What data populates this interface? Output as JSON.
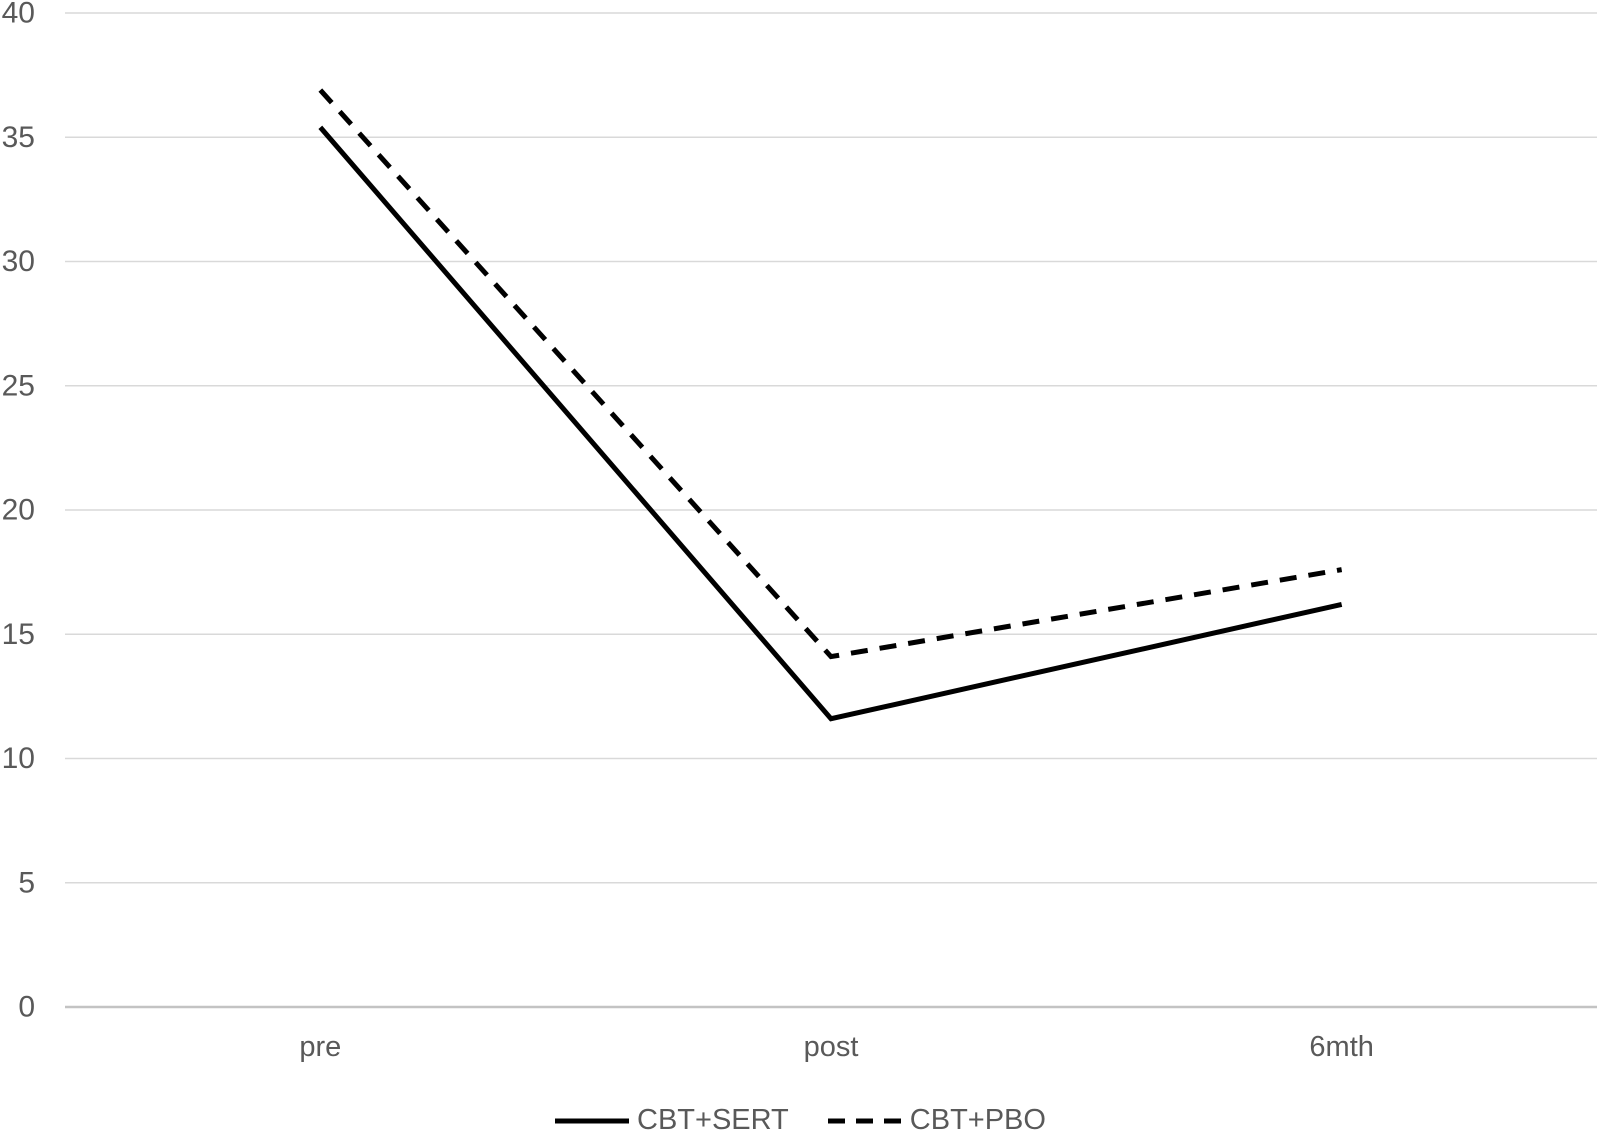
{
  "chart_data": {
    "type": "line",
    "title": "",
    "xlabel": "",
    "ylabel": "",
    "categories": [
      "pre",
      "post",
      "6mth"
    ],
    "series": [
      {
        "name": "CBT+SERT",
        "line_style": "solid",
        "values": [
          35.4,
          11.6,
          16.2
        ]
      },
      {
        "name": "CBT+PBO",
        "line_style": "dashed",
        "values": [
          36.9,
          14.1,
          17.6
        ]
      }
    ],
    "ylim": [
      0,
      40
    ],
    "ytick_step": 5,
    "yticks": [
      0,
      5,
      10,
      15,
      20,
      25,
      30,
      35,
      40
    ],
    "grid": true,
    "legend_position": "bottom-center",
    "colors": {
      "line": "#000000",
      "gridline": "#d9d9d9",
      "axis_line": "#c3c3c3",
      "tick_label": "#595959",
      "background": "#ffffff"
    }
  }
}
